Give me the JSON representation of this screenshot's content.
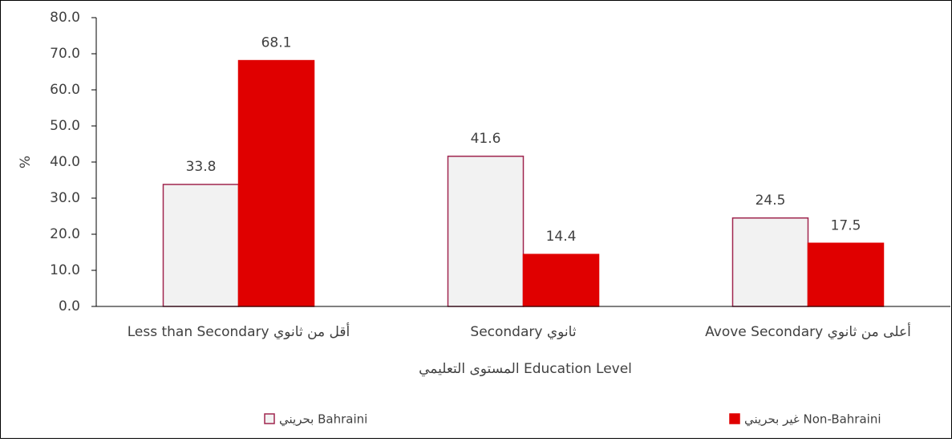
{
  "chart_data": {
    "type": "bar",
    "categories": [
      "Less than Secondary  أقل من ثانوي",
      "Secondary  ثانوي",
      "Avove Secondary  أعلى من ثانوي"
    ],
    "series": [
      {
        "name": "بحريني  Bahraini",
        "color": "#f2f2f2",
        "edgecolor": "#a0264f",
        "values": [
          33.8,
          41.6,
          24.5
        ]
      },
      {
        "name": "غير بحريني  Non-Bahraini",
        "color": "#e00000",
        "edgecolor": "#e00000",
        "values": [
          68.1,
          14.4,
          17.5
        ]
      }
    ],
    "xlabel": "المستوى التعليمي  Education Level",
    "ylabel": "%",
    "ylim": [
      0,
      80
    ],
    "yticks": [
      {
        "value": 0,
        "label": "0.0"
      },
      {
        "value": 10,
        "label": "10.0"
      },
      {
        "value": 20,
        "label": "20.0"
      },
      {
        "value": 30,
        "label": "30.0"
      },
      {
        "value": 40,
        "label": "40.0"
      },
      {
        "value": 50,
        "label": "50.0"
      },
      {
        "value": 60,
        "label": "60.0"
      },
      {
        "value": 70,
        "label": "70.0"
      },
      {
        "value": 80,
        "label": "80.0"
      }
    ],
    "grid": false,
    "legend": "bottom"
  }
}
